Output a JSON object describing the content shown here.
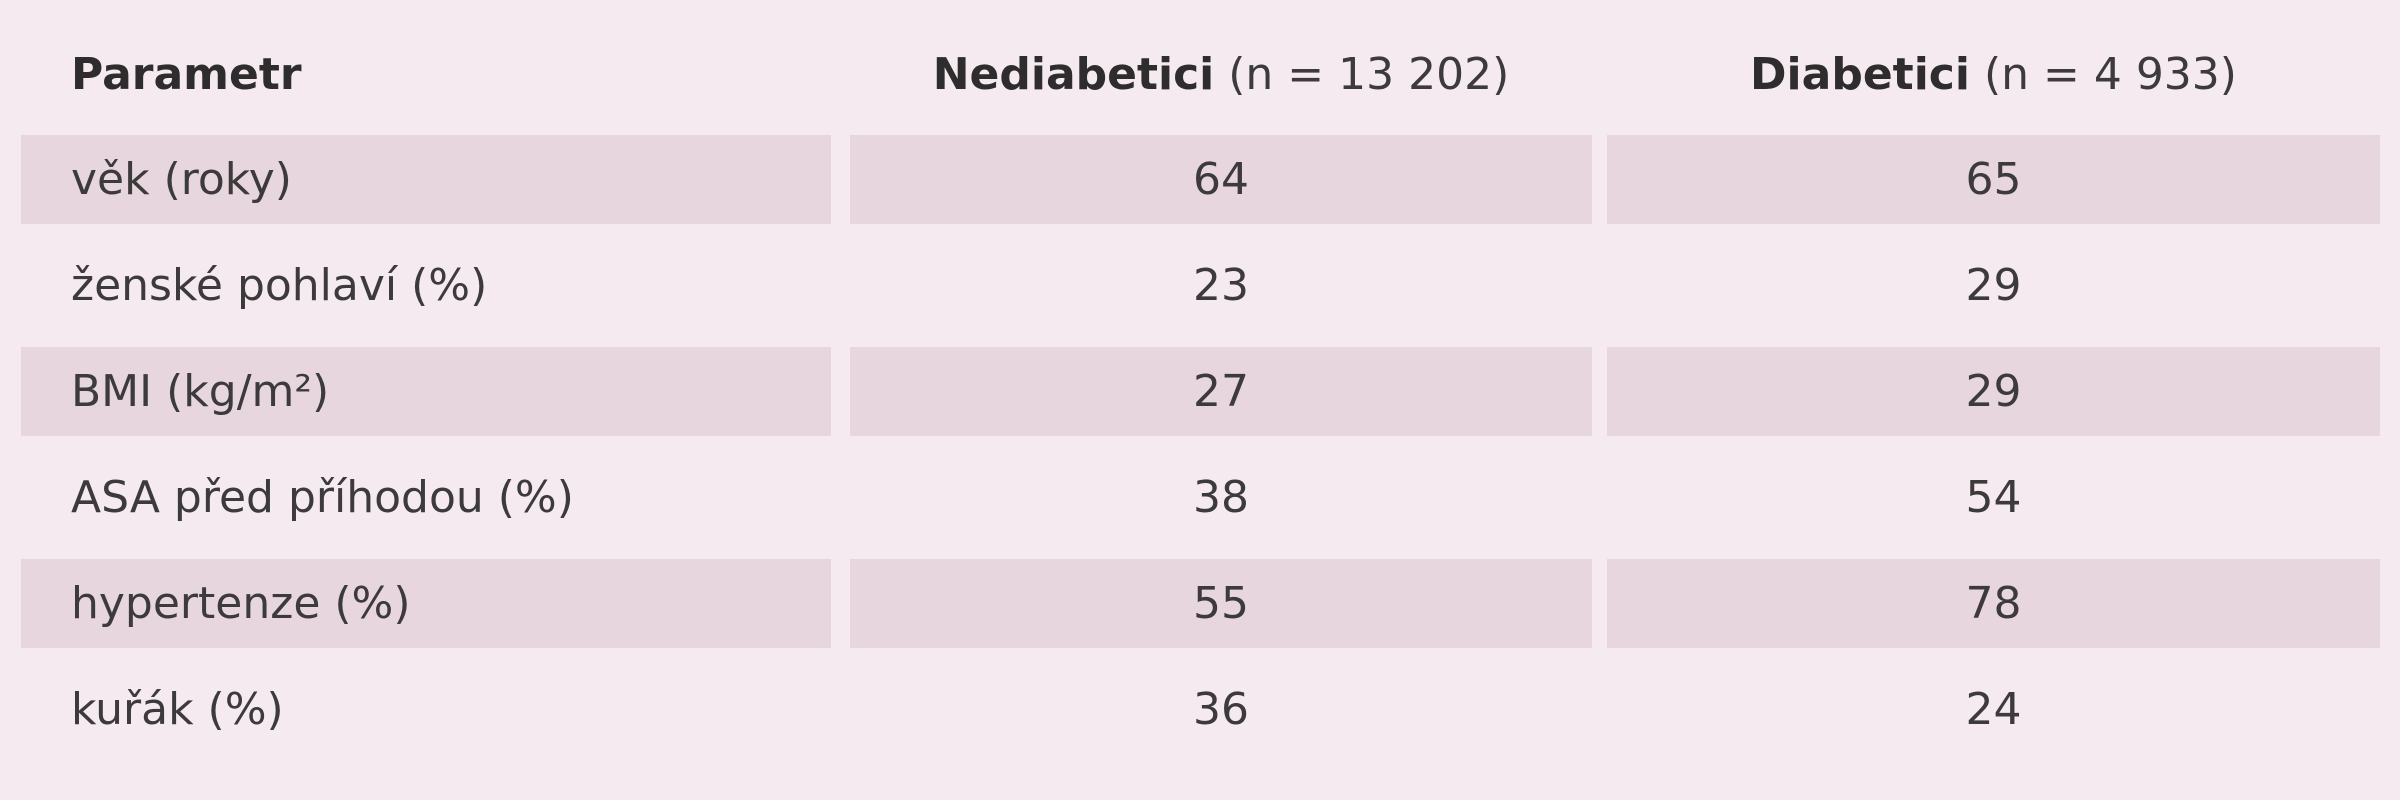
{
  "table": {
    "header": [
      {
        "bold": "Parametr"
      },
      {
        "bold": "Nediabetici",
        "rest": " (n = 13 202)"
      },
      {
        "bold": "Diabetici",
        "rest": " (n = 4 933)"
      }
    ],
    "rows": [
      [
        "věk (roky)",
        64,
        65
      ],
      [
        "ženské pohlaví (%)",
        23,
        29
      ],
      [
        "BMI (kg/m²)",
        27,
        29
      ],
      [
        "ASA před příhodou (%)",
        38,
        54
      ],
      [
        "hypertenze (%)",
        55,
        78
      ],
      [
        "kuřák (%)",
        36,
        24
      ]
    ]
  }
}
